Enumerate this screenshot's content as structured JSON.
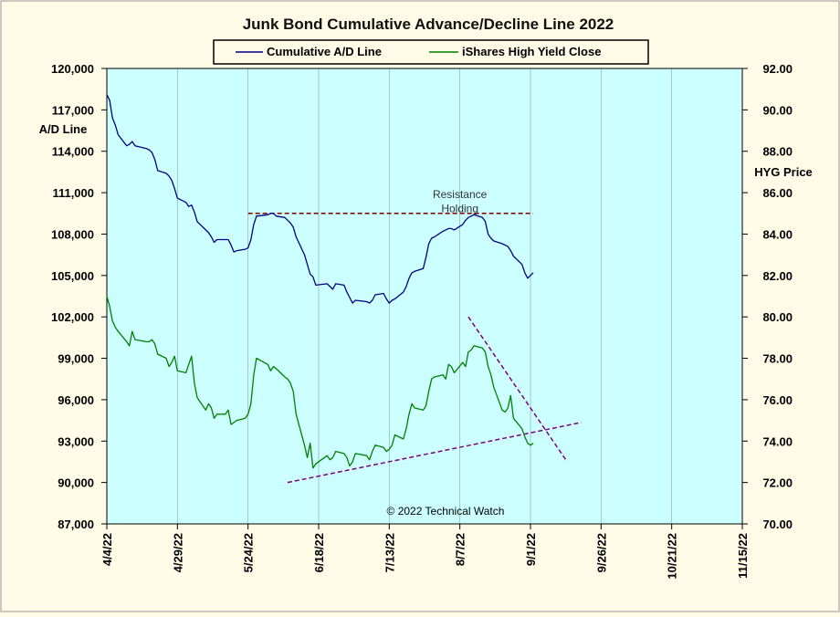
{
  "chart_data": {
    "type": "line",
    "title": "Junk Bond Cumulative  Advance/Decline  Line  2022",
    "ylabel_left": "A/D Line",
    "ylabel_right": "HYG Price",
    "colors": {
      "background": "#fffbe6",
      "plot": "#ccffff",
      "ad_line": "#000080",
      "hyg": "#008000",
      "trend": "#800080",
      "resistance": "#800000"
    },
    "x_ticks": [
      "4/4/22",
      "4/29/22",
      "5/24/22",
      "6/18/22",
      "7/13/22",
      "8/7/22",
      "9/1/22",
      "9/26/22",
      "10/21/22",
      "11/15/22"
    ],
    "x_range": [
      "4/4/22",
      "11/15/22"
    ],
    "ylim_left": [
      87000,
      120000
    ],
    "y_ticks_left": [
      "87,000",
      "90,000",
      "93,000",
      "96,000",
      "99,000",
      "102,000",
      "105,000",
      "108,000",
      "111,000",
      "114,000",
      "117,000",
      "120,000"
    ],
    "ylim_right": [
      70,
      92
    ],
    "y_ticks_right": [
      "70.00",
      "72.00",
      "74.00",
      "76.00",
      "78.00",
      "80.00",
      "82.00",
      "84.00",
      "86.00",
      "88.00",
      "90.00",
      "92.00"
    ],
    "legend": {
      "placement": "top-center"
    },
    "series": [
      {
        "name": "Cumulative A/D Line",
        "axis": "left",
        "color": "#000080",
        "points": [
          [
            "4/4/22",
            118100
          ],
          [
            "4/5/22",
            117700
          ],
          [
            "4/6/22",
            116400
          ],
          [
            "4/7/22",
            115900
          ],
          [
            "4/8/22",
            115200
          ],
          [
            "4/11/22",
            114400
          ],
          [
            "4/12/22",
            114500
          ],
          [
            "4/13/22",
            114700
          ],
          [
            "4/14/22",
            114400
          ],
          [
            "4/18/22",
            114200
          ],
          [
            "4/19/22",
            114100
          ],
          [
            "4/20/22",
            113900
          ],
          [
            "4/21/22",
            113400
          ],
          [
            "4/22/22",
            112600
          ],
          [
            "4/25/22",
            112400
          ],
          [
            "4/26/22",
            112200
          ],
          [
            "4/27/22",
            111900
          ],
          [
            "4/28/22",
            111300
          ],
          [
            "4/29/22",
            110600
          ],
          [
            "5/2/22",
            110300
          ],
          [
            "5/3/22",
            110000
          ],
          [
            "5/4/22",
            110100
          ],
          [
            "5/5/22",
            109600
          ],
          [
            "5/6/22",
            108900
          ],
          [
            "5/9/22",
            108300
          ],
          [
            "5/10/22",
            108100
          ],
          [
            "5/11/22",
            107800
          ],
          [
            "5/12/22",
            107400
          ],
          [
            "5/13/22",
            107600
          ],
          [
            "5/16/22",
            107600
          ],
          [
            "5/17/22",
            107600
          ],
          [
            "5/18/22",
            107200
          ],
          [
            "5/19/22",
            106700
          ],
          [
            "5/20/22",
            106800
          ],
          [
            "5/23/22",
            106900
          ],
          [
            "5/24/22",
            107000
          ],
          [
            "5/25/22",
            107600
          ],
          [
            "5/26/22",
            108700
          ],
          [
            "5/27/22",
            109300
          ],
          [
            "5/31/22",
            109400
          ],
          [
            "6/1/22",
            109500
          ],
          [
            "6/2/22",
            109500
          ],
          [
            "6/3/22",
            109300
          ],
          [
            "6/6/22",
            109200
          ],
          [
            "6/7/22",
            109000
          ],
          [
            "6/8/22",
            108800
          ],
          [
            "6/9/22",
            108500
          ],
          [
            "6/10/22",
            107800
          ],
          [
            "6/13/22",
            106500
          ],
          [
            "6/14/22",
            105800
          ],
          [
            "6/15/22",
            105100
          ],
          [
            "6/16/22",
            104900
          ],
          [
            "6/17/22",
            104300
          ],
          [
            "6/21/22",
            104400
          ],
          [
            "6/22/22",
            104200
          ],
          [
            "6/23/22",
            104000
          ],
          [
            "6/24/22",
            104400
          ],
          [
            "6/27/22",
            104300
          ],
          [
            "6/28/22",
            103800
          ],
          [
            "6/29/22",
            103400
          ],
          [
            "6/30/22",
            103000
          ],
          [
            "7/1/22",
            103200
          ],
          [
            "7/5/22",
            103100
          ],
          [
            "7/6/22",
            103000
          ],
          [
            "7/7/22",
            103200
          ],
          [
            "7/8/22",
            103600
          ],
          [
            "7/11/22",
            103700
          ],
          [
            "7/12/22",
            103300
          ],
          [
            "7/13/22",
            103000
          ],
          [
            "7/14/22",
            103200
          ],
          [
            "7/15/22",
            103300
          ],
          [
            "7/18/22",
            103800
          ],
          [
            "7/19/22",
            104200
          ],
          [
            "7/20/22",
            104800
          ],
          [
            "7/21/22",
            105200
          ],
          [
            "7/22/22",
            105300
          ],
          [
            "7/25/22",
            105500
          ],
          [
            "7/26/22",
            106300
          ],
          [
            "7/27/22",
            107300
          ],
          [
            "7/28/22",
            107700
          ],
          [
            "7/29/22",
            107800
          ],
          [
            "8/1/22",
            108200
          ],
          [
            "8/2/22",
            108300
          ],
          [
            "8/3/22",
            108400
          ],
          [
            "8/4/22",
            108400
          ],
          [
            "8/5/22",
            108300
          ],
          [
            "8/8/22",
            108700
          ],
          [
            "8/9/22",
            109000
          ],
          [
            "8/10/22",
            109200
          ],
          [
            "8/11/22",
            109300
          ],
          [
            "8/12/22",
            109400
          ],
          [
            "8/15/22",
            109200
          ],
          [
            "8/16/22",
            108900
          ],
          [
            "8/17/22",
            108000
          ],
          [
            "8/18/22",
            107700
          ],
          [
            "8/19/22",
            107500
          ],
          [
            "8/22/22",
            107300
          ],
          [
            "8/23/22",
            107200
          ],
          [
            "8/24/22",
            107100
          ],
          [
            "8/25/22",
            106800
          ],
          [
            "8/26/22",
            106400
          ],
          [
            "8/29/22",
            105800
          ],
          [
            "8/30/22",
            105200
          ],
          [
            "8/31/22",
            104800
          ],
          [
            "9/1/22",
            105000
          ],
          [
            "9/2/22",
            105200
          ]
        ]
      },
      {
        "name": "iShares High Yield Close",
        "axis": "right",
        "color": "#008000",
        "points": [
          [
            "4/4/22",
            81.0
          ],
          [
            "4/5/22",
            80.5
          ],
          [
            "4/6/22",
            79.8
          ],
          [
            "4/7/22",
            79.5
          ],
          [
            "4/8/22",
            79.3
          ],
          [
            "4/11/22",
            78.8
          ],
          [
            "4/12/22",
            78.6
          ],
          [
            "4/13/22",
            79.3
          ],
          [
            "4/14/22",
            78.9
          ],
          [
            "4/18/22",
            78.8
          ],
          [
            "4/19/22",
            78.8
          ],
          [
            "4/20/22",
            78.9
          ],
          [
            "4/21/22",
            78.7
          ],
          [
            "4/22/22",
            78.2
          ],
          [
            "4/25/22",
            78.0
          ],
          [
            "4/26/22",
            77.6
          ],
          [
            "4/27/22",
            77.8
          ],
          [
            "4/28/22",
            78.1
          ],
          [
            "4/29/22",
            77.4
          ],
          [
            "5/2/22",
            77.3
          ],
          [
            "5/3/22",
            77.7
          ],
          [
            "5/4/22",
            78.1
          ],
          [
            "5/5/22",
            76.8
          ],
          [
            "5/6/22",
            76.1
          ],
          [
            "5/9/22",
            75.5
          ],
          [
            "5/10/22",
            75.8
          ],
          [
            "5/11/22",
            75.6
          ],
          [
            "5/12/22",
            75.1
          ],
          [
            "5/13/22",
            75.3
          ],
          [
            "5/16/22",
            75.3
          ],
          [
            "5/17/22",
            75.5
          ],
          [
            "5/18/22",
            74.8
          ],
          [
            "5/19/22",
            74.9
          ],
          [
            "5/20/22",
            75.0
          ],
          [
            "5/23/22",
            75.1
          ],
          [
            "5/24/22",
            75.3
          ],
          [
            "5/25/22",
            75.8
          ],
          [
            "5/26/22",
            77.2
          ],
          [
            "5/27/22",
            78.0
          ],
          [
            "5/31/22",
            77.7
          ],
          [
            "6/1/22",
            77.4
          ],
          [
            "6/2/22",
            77.6
          ],
          [
            "6/3/22",
            77.5
          ],
          [
            "6/6/22",
            77.1
          ],
          [
            "6/7/22",
            77.0
          ],
          [
            "6/8/22",
            76.8
          ],
          [
            "6/9/22",
            76.4
          ],
          [
            "6/10/22",
            75.3
          ],
          [
            "6/13/22",
            73.8
          ],
          [
            "6/14/22",
            73.2
          ],
          [
            "6/15/22",
            73.9
          ],
          [
            "6/16/22",
            72.7
          ],
          [
            "6/17/22",
            72.9
          ],
          [
            "6/21/22",
            73.3
          ],
          [
            "6/22/22",
            73.1
          ],
          [
            "6/23/22",
            73.2
          ],
          [
            "6/24/22",
            73.5
          ],
          [
            "6/27/22",
            73.4
          ],
          [
            "6/28/22",
            73.2
          ],
          [
            "6/29/22",
            72.8
          ],
          [
            "6/30/22",
            73.0
          ],
          [
            "7/1/22",
            73.4
          ],
          [
            "7/5/22",
            73.3
          ],
          [
            "7/6/22",
            73.1
          ],
          [
            "7/7/22",
            73.5
          ],
          [
            "7/8/22",
            73.8
          ],
          [
            "7/11/22",
            73.7
          ],
          [
            "7/12/22",
            73.5
          ],
          [
            "7/13/22",
            73.6
          ],
          [
            "7/14/22",
            73.8
          ],
          [
            "7/15/22",
            74.3
          ],
          [
            "7/18/22",
            74.1
          ],
          [
            "7/19/22",
            74.6
          ],
          [
            "7/20/22",
            75.3
          ],
          [
            "7/21/22",
            75.8
          ],
          [
            "7/22/22",
            75.6
          ],
          [
            "7/25/22",
            75.5
          ],
          [
            "7/26/22",
            75.7
          ],
          [
            "7/27/22",
            76.4
          ],
          [
            "7/28/22",
            77.0
          ],
          [
            "7/29/22",
            77.1
          ],
          [
            "8/1/22",
            77.2
          ],
          [
            "8/2/22",
            77.0
          ],
          [
            "8/3/22",
            77.7
          ],
          [
            "8/4/22",
            77.6
          ],
          [
            "8/5/22",
            77.3
          ],
          [
            "8/8/22",
            77.8
          ],
          [
            "8/9/22",
            77.6
          ],
          [
            "8/10/22",
            78.3
          ],
          [
            "8/11/22",
            78.4
          ],
          [
            "8/12/22",
            78.6
          ],
          [
            "8/15/22",
            78.5
          ],
          [
            "8/16/22",
            78.3
          ],
          [
            "8/17/22",
            77.6
          ],
          [
            "8/18/22",
            77.2
          ],
          [
            "8/19/22",
            76.6
          ],
          [
            "8/22/22",
            75.5
          ],
          [
            "8/23/22",
            75.4
          ],
          [
            "8/24/22",
            75.6
          ],
          [
            "8/25/22",
            76.2
          ],
          [
            "8/26/22",
            75.1
          ],
          [
            "8/29/22",
            74.6
          ],
          [
            "8/30/22",
            74.2
          ],
          [
            "8/31/22",
            73.9
          ],
          [
            "9/1/22",
            73.8
          ],
          [
            "9/2/22",
            73.9
          ]
        ]
      }
    ],
    "reference_lines": [
      {
        "type": "resistance",
        "axis": "left",
        "from": [
          "5/24/22",
          109500
        ],
        "to": [
          "9/2/22",
          109500
        ],
        "color": "#800000"
      },
      {
        "type": "trendline",
        "axis": "right",
        "from": [
          "6/7/22",
          72.0
        ],
        "to": [
          "9/19/22",
          74.9
        ],
        "color": "#800080"
      },
      {
        "type": "trendline",
        "axis": "right",
        "from": [
          "8/10/22",
          80.0
        ],
        "to": [
          "9/14/22",
          73.0
        ],
        "color": "#800080"
      }
    ],
    "annotations": [
      {
        "text": "Resistance",
        "at": [
          "8/7/22",
          110600
        ],
        "axis": "left"
      },
      {
        "text": "Holding",
        "at": [
          "8/7/22",
          109600
        ],
        "axis": "left"
      }
    ],
    "credit": "© 2022 Technical Watch"
  }
}
